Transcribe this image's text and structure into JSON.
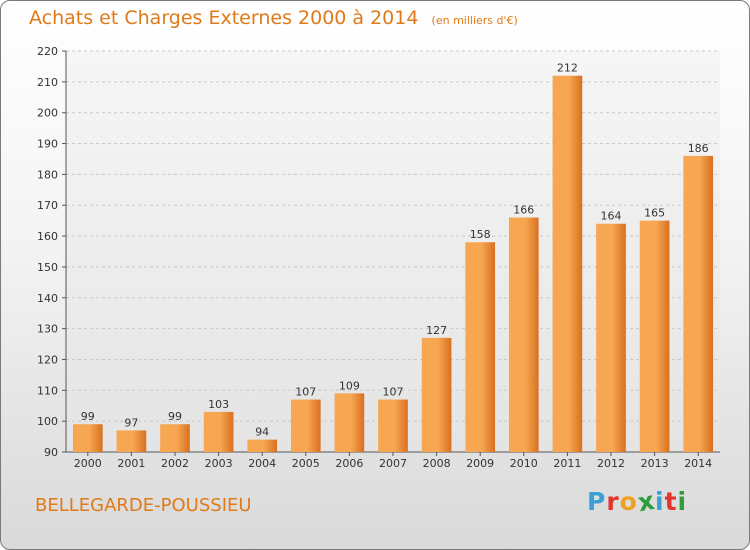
{
  "header": {
    "title": "Achats et Charges Externes 2000 à 2014",
    "subtitle": "(en milliers d'€)"
  },
  "footer": {
    "commune": "BELLEGARDE-POUSSIEU",
    "logo_letters": [
      "P",
      "r",
      "o",
      "x",
      "i",
      "t",
      "i"
    ],
    "logo_colors": [
      "#3aa0d8",
      "#e0342c",
      "#f0a020",
      "#2e9d3a",
      "#3aa0d8",
      "#e0342c",
      "#2e9d3a"
    ]
  },
  "colors": {
    "accent": "#e07a18",
    "bar_light": "#f7a652",
    "bar_dark": "#d8701e"
  },
  "chart_data": {
    "type": "bar",
    "title": "Achats et Charges Externes 2000 à 2014",
    "subtitle": "(en milliers d'€)",
    "categories": [
      "2000",
      "2001",
      "2002",
      "2003",
      "2004",
      "2005",
      "2006",
      "2007",
      "2008",
      "2009",
      "2010",
      "2011",
      "2012",
      "2013",
      "2014"
    ],
    "values": [
      99,
      97,
      99,
      103,
      94,
      107,
      109,
      107,
      127,
      158,
      166,
      212,
      164,
      165,
      186
    ],
    "ylim": [
      90,
      220
    ],
    "yticks": [
      90,
      100,
      110,
      120,
      130,
      140,
      150,
      160,
      170,
      180,
      190,
      200,
      210,
      220
    ],
    "grid": true,
    "legend": "none"
  }
}
